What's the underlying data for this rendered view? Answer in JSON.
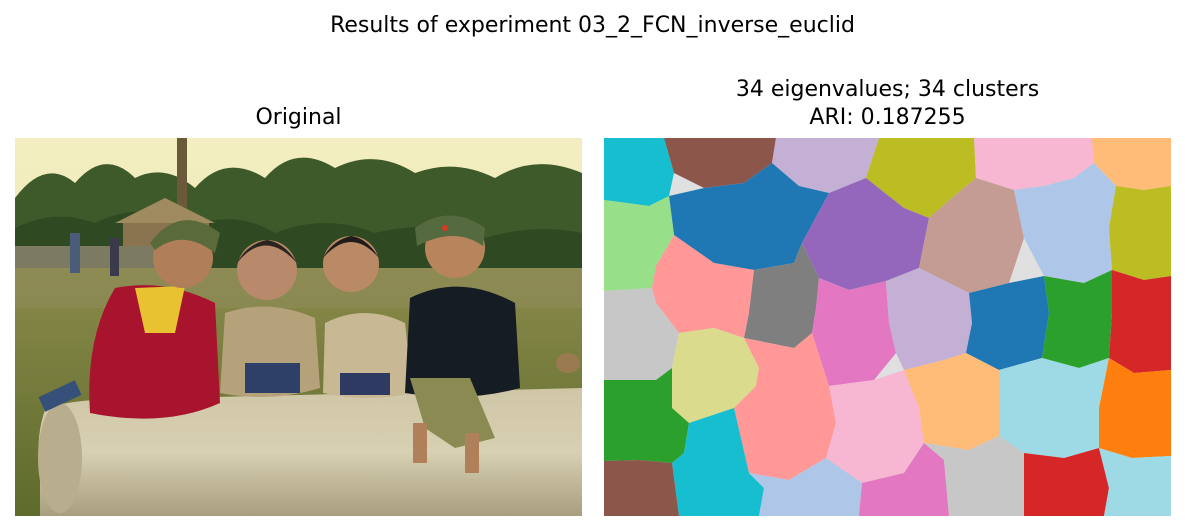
{
  "figure": {
    "suptitle": "Results of experiment 03_2_FCN_inverse_euclid"
  },
  "left_panel": {
    "title": "Original"
  },
  "right_panel": {
    "title_line1": "34 eigenvalues; 34 clusters",
    "title_line2": "ARI: 0.187255"
  },
  "palette": {
    "cyan": "#17becf",
    "brown": "#8c564b",
    "lavender": "#c5b0d5",
    "olive": "#bcbd22",
    "pink_light": "#f7b6d2",
    "orange_light": "#ffbb78",
    "blue": "#1f77b4",
    "purple": "#9467bd",
    "rosy": "#c49c94",
    "blue_light": "#aec7e8",
    "green_light": "#98df8a",
    "salmon": "#ff9896",
    "gray": "#7f7f7f",
    "gray_light": "#c7c7c7",
    "magenta": "#e377c2",
    "green": "#2ca02c",
    "red": "#d62728",
    "khaki": "#dbdb8d",
    "orange": "#ff7f0e",
    "cyan_light": "#9edae5"
  }
}
